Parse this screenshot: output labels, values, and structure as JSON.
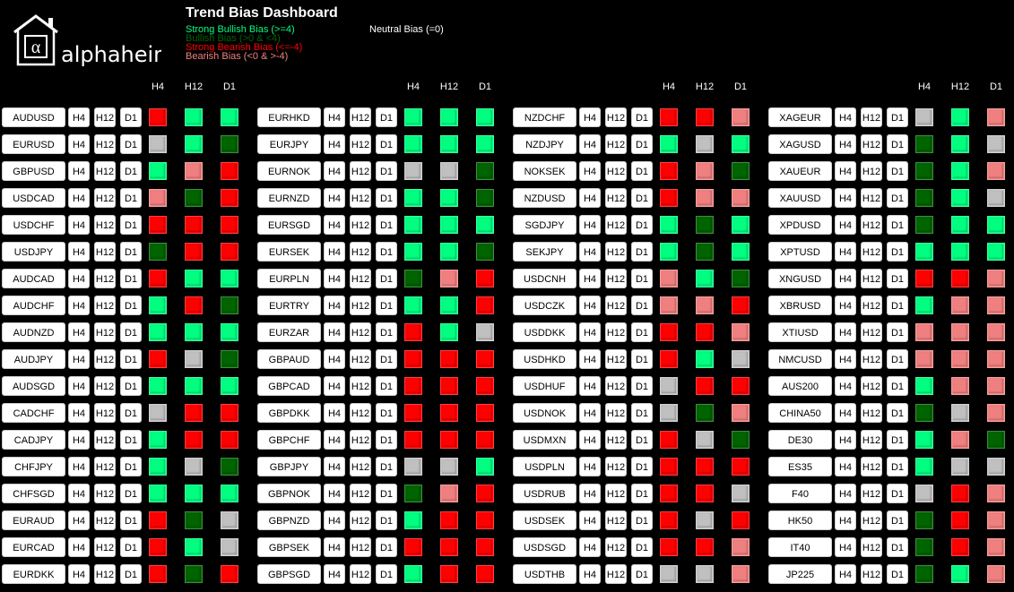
{
  "brand": {
    "name": "alphaheim",
    "glyph": "α"
  },
  "title": "Trend Bias Dashboard",
  "legend": [
    {
      "label": "Strong Bullish Bias (>=4)",
      "key": "SB"
    },
    {
      "label": "Bullish Bias (>0 & <4)",
      "key": "B"
    },
    {
      "label": "Strong Bearish Bias (<=-4)",
      "key": "SR"
    },
    {
      "label": "Bearish Bias (<0 & >-4)",
      "key": "R"
    }
  ],
  "neutral_label": "Neutral Bias (=0)",
  "colors": {
    "SB": "#00ff80",
    "B": "#006400",
    "SR": "#ff0000",
    "R": "#f08080",
    "N": "#c0c0c0"
  },
  "timeframes": [
    "H4",
    "H12",
    "D1"
  ],
  "columns": [
    {
      "rows": [
        {
          "pair": "AUDUSD",
          "bias": [
            "SR",
            "SB",
            "SB"
          ]
        },
        {
          "pair": "EURUSD",
          "bias": [
            "N",
            "SB",
            "B"
          ]
        },
        {
          "pair": "GBPUSD",
          "bias": [
            "SB",
            "R",
            "SR"
          ]
        },
        {
          "pair": "USDCAD",
          "bias": [
            "R",
            "B",
            "SR"
          ]
        },
        {
          "pair": "USDCHF",
          "bias": [
            "SR",
            "SR",
            "SR"
          ]
        },
        {
          "pair": "USDJPY",
          "bias": [
            "B",
            "SR",
            "SR"
          ]
        },
        {
          "pair": "AUDCAD",
          "bias": [
            "SR",
            "SB",
            "SB"
          ]
        },
        {
          "pair": "AUDCHF",
          "bias": [
            "SB",
            "SR",
            "B"
          ]
        },
        {
          "pair": "AUDNZD",
          "bias": [
            "SB",
            "SB",
            "SB"
          ]
        },
        {
          "pair": "AUDJPY",
          "bias": [
            "SR",
            "N",
            "B"
          ]
        },
        {
          "pair": "AUDSGD",
          "bias": [
            "SB",
            "SB",
            "SB"
          ]
        },
        {
          "pair": "CADCHF",
          "bias": [
            "N",
            "SR",
            "SR"
          ]
        },
        {
          "pair": "CADJPY",
          "bias": [
            "SB",
            "SR",
            "SR"
          ]
        },
        {
          "pair": "CHFJPY",
          "bias": [
            "SB",
            "N",
            "B"
          ]
        },
        {
          "pair": "CHFSGD",
          "bias": [
            "SB",
            "SB",
            "SB"
          ]
        },
        {
          "pair": "EURAUD",
          "bias": [
            "SR",
            "B",
            "N"
          ]
        },
        {
          "pair": "EURCAD",
          "bias": [
            "SR",
            "SB",
            "N"
          ]
        },
        {
          "pair": "EURDKK",
          "bias": [
            "SR",
            "B",
            "SR"
          ]
        }
      ]
    },
    {
      "rows": [
        {
          "pair": "EURHKD",
          "bias": [
            "SB",
            "SB",
            "SB"
          ]
        },
        {
          "pair": "EURJPY",
          "bias": [
            "SB",
            "SB",
            "SB"
          ]
        },
        {
          "pair": "EURNOK",
          "bias": [
            "N",
            "N",
            "B"
          ]
        },
        {
          "pair": "EURNZD",
          "bias": [
            "SB",
            "SB",
            "B"
          ]
        },
        {
          "pair": "EURSGD",
          "bias": [
            "SB",
            "SB",
            "SB"
          ]
        },
        {
          "pair": "EURSEK",
          "bias": [
            "SB",
            "SB",
            "B"
          ]
        },
        {
          "pair": "EURPLN",
          "bias": [
            "B",
            "R",
            "SR"
          ]
        },
        {
          "pair": "EURTRY",
          "bias": [
            "SB",
            "SB",
            "SR"
          ]
        },
        {
          "pair": "EURZAR",
          "bias": [
            "SR",
            "SB",
            "N"
          ]
        },
        {
          "pair": "GBPAUD",
          "bias": [
            "SR",
            "SR",
            "SR"
          ]
        },
        {
          "pair": "GBPCAD",
          "bias": [
            "SR",
            "SR",
            "SR"
          ]
        },
        {
          "pair": "GBPDKK",
          "bias": [
            "SR",
            "SR",
            "SR"
          ]
        },
        {
          "pair": "GBPCHF",
          "bias": [
            "SR",
            "SR",
            "SR"
          ]
        },
        {
          "pair": "GBPJPY",
          "bias": [
            "N",
            "N",
            "SB"
          ]
        },
        {
          "pair": "GBPNOK",
          "bias": [
            "B",
            "R",
            "SR"
          ]
        },
        {
          "pair": "GBPNZD",
          "bias": [
            "SB",
            "SR",
            "SR"
          ]
        },
        {
          "pair": "GBPSEK",
          "bias": [
            "SR",
            "SR",
            "SR"
          ]
        },
        {
          "pair": "GBPSGD",
          "bias": [
            "SB",
            "SR",
            "SR"
          ]
        }
      ]
    },
    {
      "rows": [
        {
          "pair": "NZDCHF",
          "bias": [
            "SR",
            "SR",
            "R"
          ]
        },
        {
          "pair": "NZDJPY",
          "bias": [
            "SB",
            "N",
            "SB"
          ]
        },
        {
          "pair": "NOKSEK",
          "bias": [
            "SR",
            "R",
            "B"
          ]
        },
        {
          "pair": "NZDUSD",
          "bias": [
            "SR",
            "R",
            "R"
          ]
        },
        {
          "pair": "SGDJPY",
          "bias": [
            "SB",
            "B",
            "SB"
          ]
        },
        {
          "pair": "SEKJPY",
          "bias": [
            "SB",
            "B",
            "SB"
          ]
        },
        {
          "pair": "USDCNH",
          "bias": [
            "R",
            "SB",
            "B"
          ]
        },
        {
          "pair": "USDCZK",
          "bias": [
            "R",
            "R",
            "SR"
          ]
        },
        {
          "pair": "USDDKK",
          "bias": [
            "SR",
            "SR",
            "R"
          ]
        },
        {
          "pair": "USDHKD",
          "bias": [
            "SR",
            "SB",
            "N"
          ]
        },
        {
          "pair": "USDHUF",
          "bias": [
            "N",
            "SR",
            "SR"
          ]
        },
        {
          "pair": "USDNOK",
          "bias": [
            "N",
            "B",
            "R"
          ]
        },
        {
          "pair": "USDMXN",
          "bias": [
            "SR",
            "N",
            "B"
          ]
        },
        {
          "pair": "USDPLN",
          "bias": [
            "SR",
            "SR",
            "SR"
          ]
        },
        {
          "pair": "USDRUB",
          "bias": [
            "SR",
            "SR",
            "N"
          ]
        },
        {
          "pair": "USDSEK",
          "bias": [
            "SR",
            "N",
            "SR"
          ]
        },
        {
          "pair": "USDSGD",
          "bias": [
            "SR",
            "SR",
            "R"
          ]
        },
        {
          "pair": "USDTHB",
          "bias": [
            "N",
            "N",
            "R"
          ]
        }
      ]
    },
    {
      "rows": [
        {
          "pair": "XAGEUR",
          "bias": [
            "N",
            "SB",
            "R"
          ]
        },
        {
          "pair": "XAGUSD",
          "bias": [
            "B",
            "SB",
            "N"
          ]
        },
        {
          "pair": "XAUEUR",
          "bias": [
            "B",
            "SB",
            "R"
          ]
        },
        {
          "pair": "XAUUSD",
          "bias": [
            "B",
            "SB",
            "N"
          ]
        },
        {
          "pair": "XPDUSD",
          "bias": [
            "B",
            "SB",
            "SB"
          ]
        },
        {
          "pair": "XPTUSD",
          "bias": [
            "SB",
            "SB",
            "SB"
          ]
        },
        {
          "pair": "XNGUSD",
          "bias": [
            "SR",
            "SR",
            "R"
          ]
        },
        {
          "pair": "XBRUSD",
          "bias": [
            "SB",
            "R",
            "R"
          ]
        },
        {
          "pair": "XTIUSD",
          "bias": [
            "R",
            "R",
            "R"
          ]
        },
        {
          "pair": "NMCUSD",
          "bias": [
            "R",
            "R",
            "R"
          ]
        },
        {
          "pair": "AUS200",
          "bias": [
            "SB",
            "R",
            "R"
          ]
        },
        {
          "pair": "CHINA50",
          "bias": [
            "B",
            "N",
            "R"
          ]
        },
        {
          "pair": "DE30",
          "bias": [
            "SB",
            "R",
            "B"
          ]
        },
        {
          "pair": "ES35",
          "bias": [
            "SB",
            "N",
            "N"
          ]
        },
        {
          "pair": "F40",
          "bias": [
            "N",
            "SR",
            "R"
          ]
        },
        {
          "pair": "HK50",
          "bias": [
            "B",
            "SR",
            "R"
          ]
        },
        {
          "pair": "IT40",
          "bias": [
            "B",
            "SR",
            "R"
          ]
        },
        {
          "pair": "JP225",
          "bias": [
            "B",
            "SB",
            "R"
          ]
        }
      ]
    }
  ]
}
